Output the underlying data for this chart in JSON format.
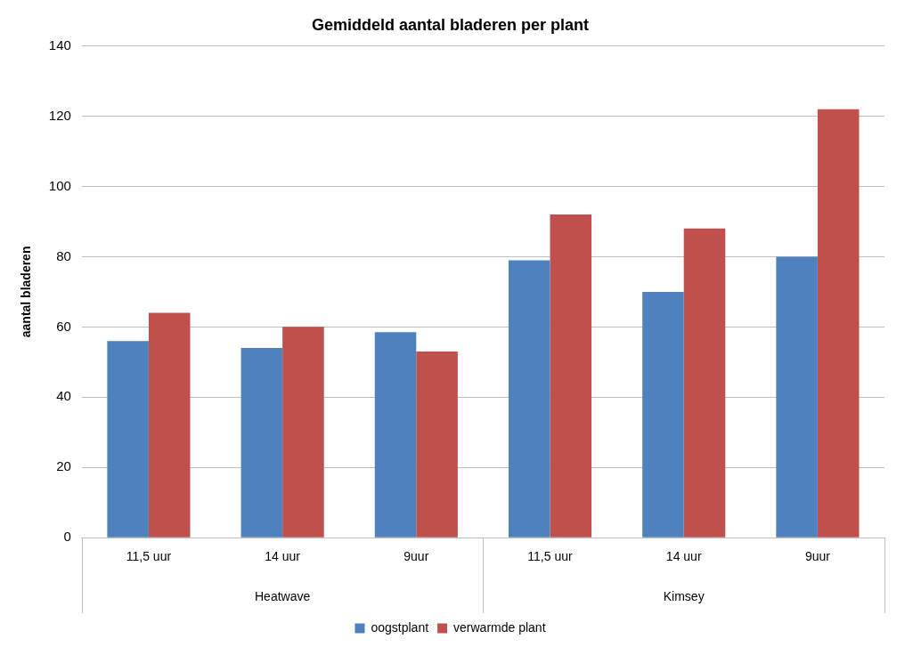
{
  "chart_data": {
    "type": "bar",
    "title": "Gemiddeld aantal bladeren per plant",
    "ylabel": "aantal bladeren",
    "categories": [
      "11,5 uur",
      "14 uur",
      "9uur",
      "11,5 uur",
      "14 uur",
      "9uur"
    ],
    "annotations": [
      "Heatwave",
      "Kimsey"
    ],
    "series": [
      {
        "name": "oogstplant",
        "color": "#4f81bd",
        "values": [
          56,
          54,
          58.5,
          79,
          70,
          80
        ]
      },
      {
        "name": "verwarmde plant",
        "color": "#c0504d",
        "values": [
          64,
          60,
          53,
          92,
          88,
          122
        ]
      }
    ],
    "ylim": [
      0,
      140
    ],
    "yticks": [
      0,
      20,
      40,
      60,
      80,
      100,
      120,
      140
    ],
    "grid": "y",
    "legend": "bottom"
  }
}
